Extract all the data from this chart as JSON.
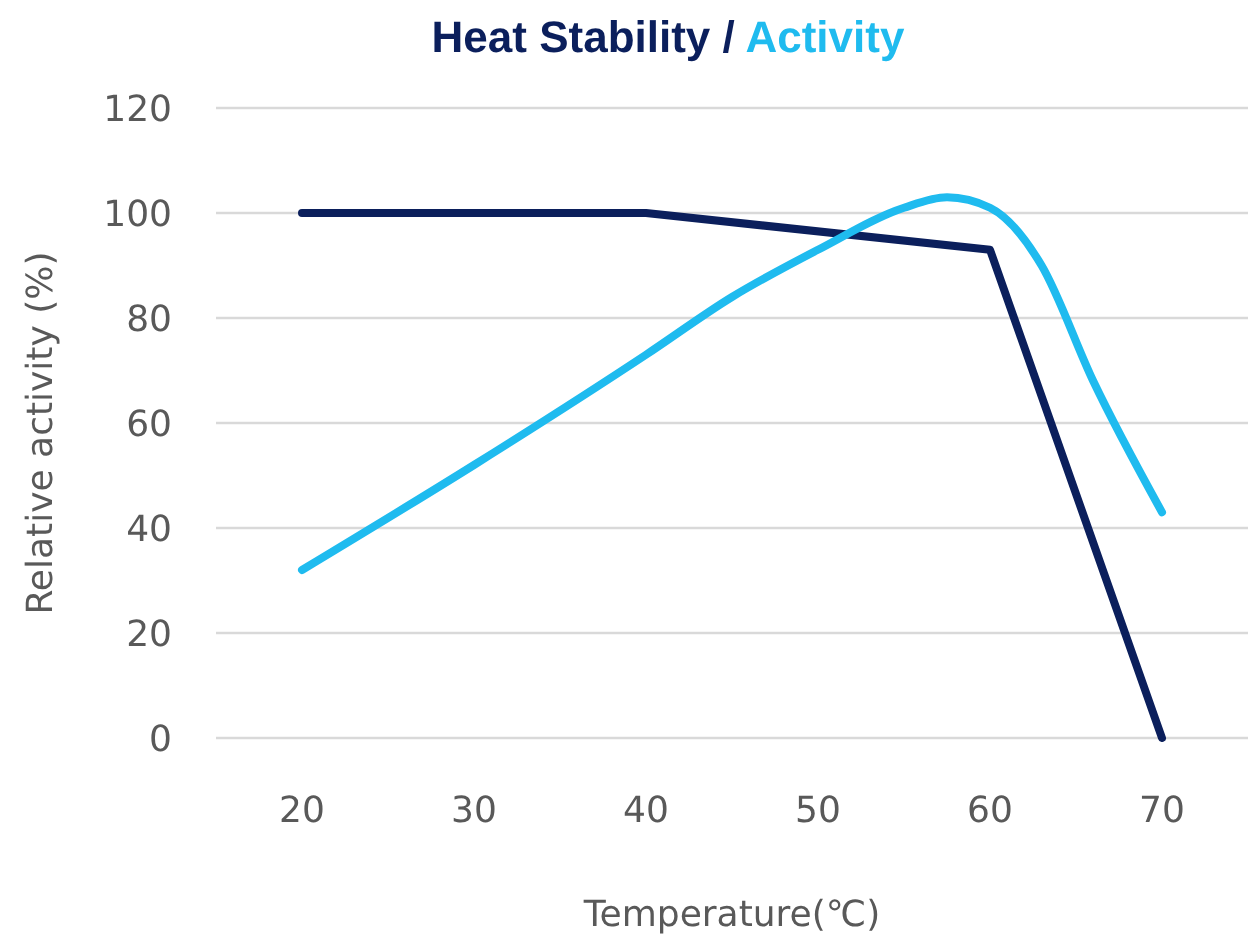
{
  "chart_data": {
    "type": "line",
    "xlabel": "Temperature(℃)",
    "ylabel": "Relative activity (%)",
    "xlim": [
      15,
      75
    ],
    "xticks": [
      20,
      30,
      40,
      50,
      60,
      70
    ],
    "ylim": [
      0,
      120
    ],
    "yticks": [
      0,
      20,
      40,
      60,
      80,
      100,
      120
    ],
    "grid": "y",
    "annotations": [
      "/"
    ],
    "legend": "top",
    "marker": "none",
    "line_style": "solid",
    "series": [
      {
        "name": "Heat Stability",
        "color": "#0b1f5c",
        "x": [
          20,
          40,
          60,
          70
        ],
        "values": [
          100,
          100,
          93,
          0
        ]
      },
      {
        "name": "Activity",
        "color": "#1fbbef",
        "x": [
          20,
          30,
          40,
          45,
          50,
          55,
          57.5,
          60,
          63,
          66,
          70
        ],
        "values": [
          32,
          52,
          73,
          84,
          93,
          101,
          103,
          101,
          90,
          68,
          43
        ]
      }
    ]
  }
}
